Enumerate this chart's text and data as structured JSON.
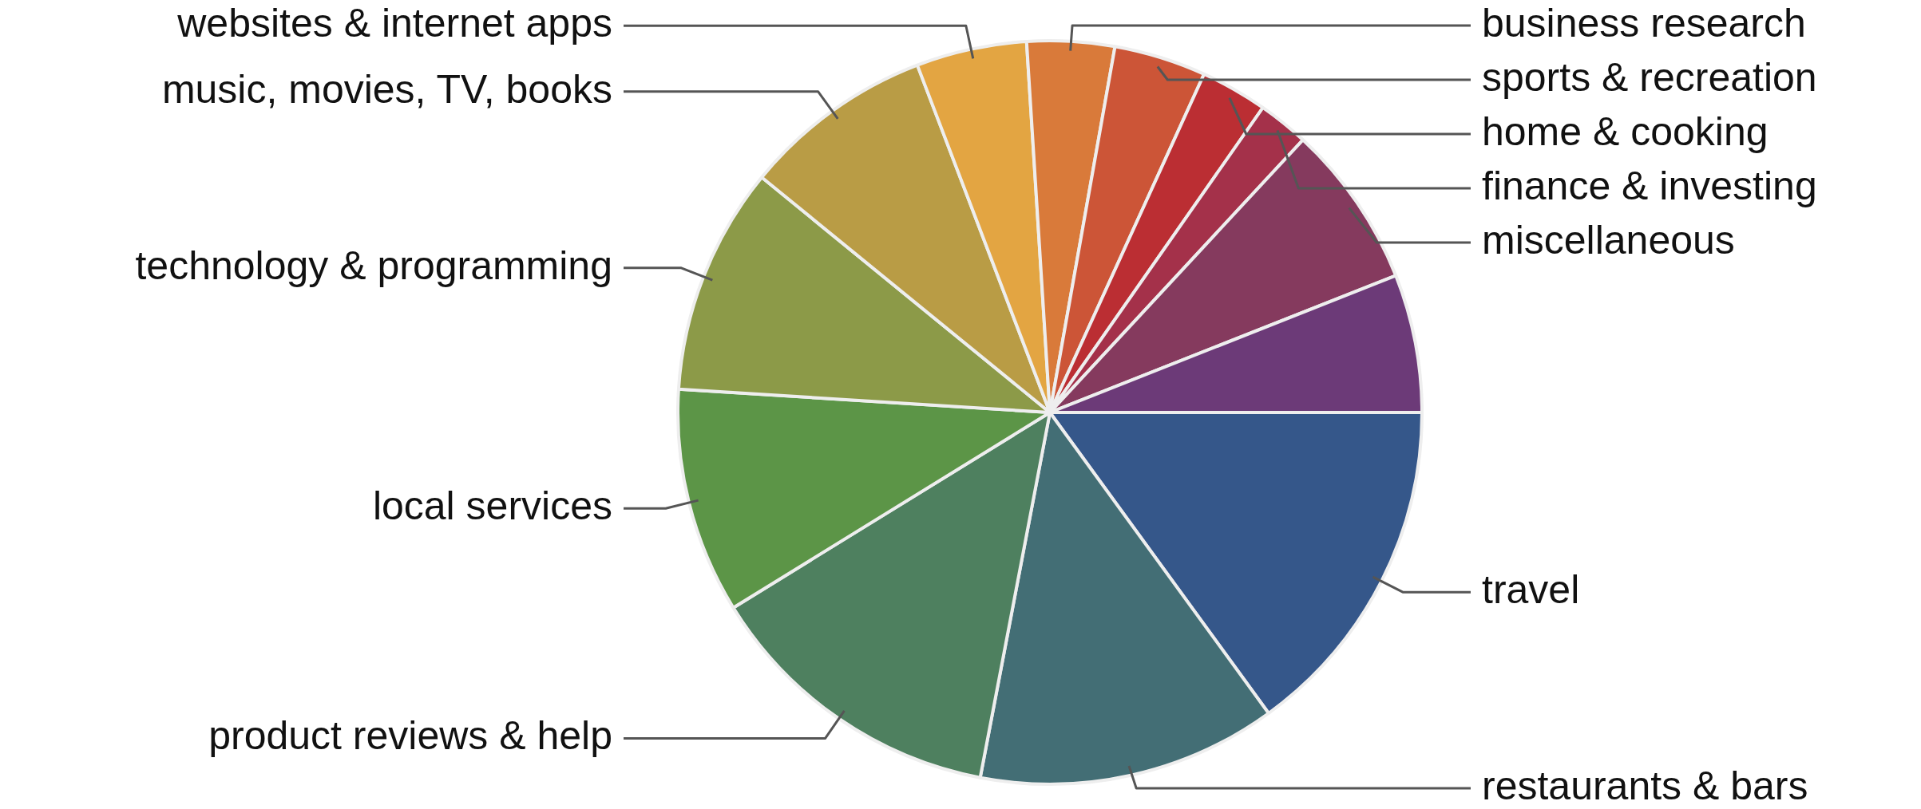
{
  "chart_data": {
    "type": "pie",
    "categories": [
      "travel",
      "restaurants & bars",
      "product reviews & help",
      "local services",
      "technology & programming",
      "music, movies, TV, books",
      "websites & internet apps",
      "business research",
      "sports & recreation",
      "home & cooking",
      "finance & investing",
      "miscellaneous",
      null
    ],
    "values": [
      15,
      13,
      13.2,
      9.8,
      9.9,
      8.3,
      4.8,
      3.8,
      4,
      2.9,
      2.2,
      7.1,
      6
    ],
    "colors": [
      "#35578a",
      "#436e75",
      "#4e805f",
      "#5c9547",
      "#8c9a48",
      "#b99c45",
      "#e3a542",
      "#d97a3a",
      "#cc5537",
      "#bb2e33",
      "#a4314a",
      "#853a5e",
      "#6c3a78"
    ]
  }
}
